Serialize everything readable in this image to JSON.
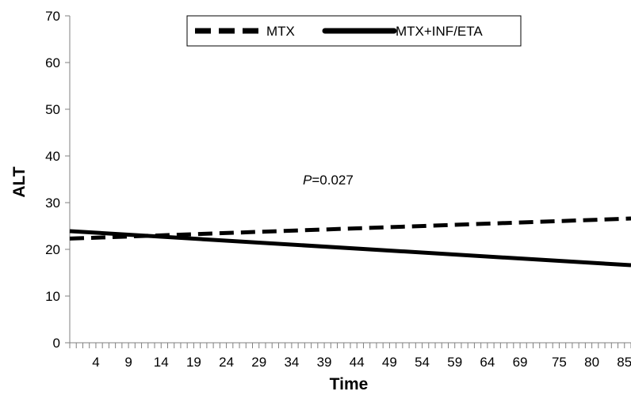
{
  "chart_data": {
    "type": "line",
    "xlabel": "Time",
    "ylabel": "ALT",
    "ylim": [
      0,
      70
    ],
    "yticks": [
      "0",
      "10",
      "20",
      "30",
      "40",
      "50",
      "60",
      "70"
    ],
    "xlim": [
      0,
      86
    ],
    "xtick_labels": [
      "4",
      "9",
      "14",
      "19",
      "24",
      "29",
      "34",
      "39",
      "44",
      "49",
      "54",
      "59",
      "64",
      "69",
      "75",
      "80",
      "85"
    ],
    "legend_position": "top-center",
    "grid": false,
    "series": [
      {
        "name": "MTX",
        "style": "dashed",
        "color": "#000000",
        "x": [
          0,
          86
        ],
        "y": [
          22.3,
          26.6
        ]
      },
      {
        "name": "MTX+INF/ETA",
        "style": "solid",
        "color": "#000000",
        "x": [
          0,
          86
        ],
        "y": [
          23.9,
          16.6
        ]
      }
    ],
    "annotation": {
      "italic": "P",
      "rest": "=0.027"
    }
  }
}
